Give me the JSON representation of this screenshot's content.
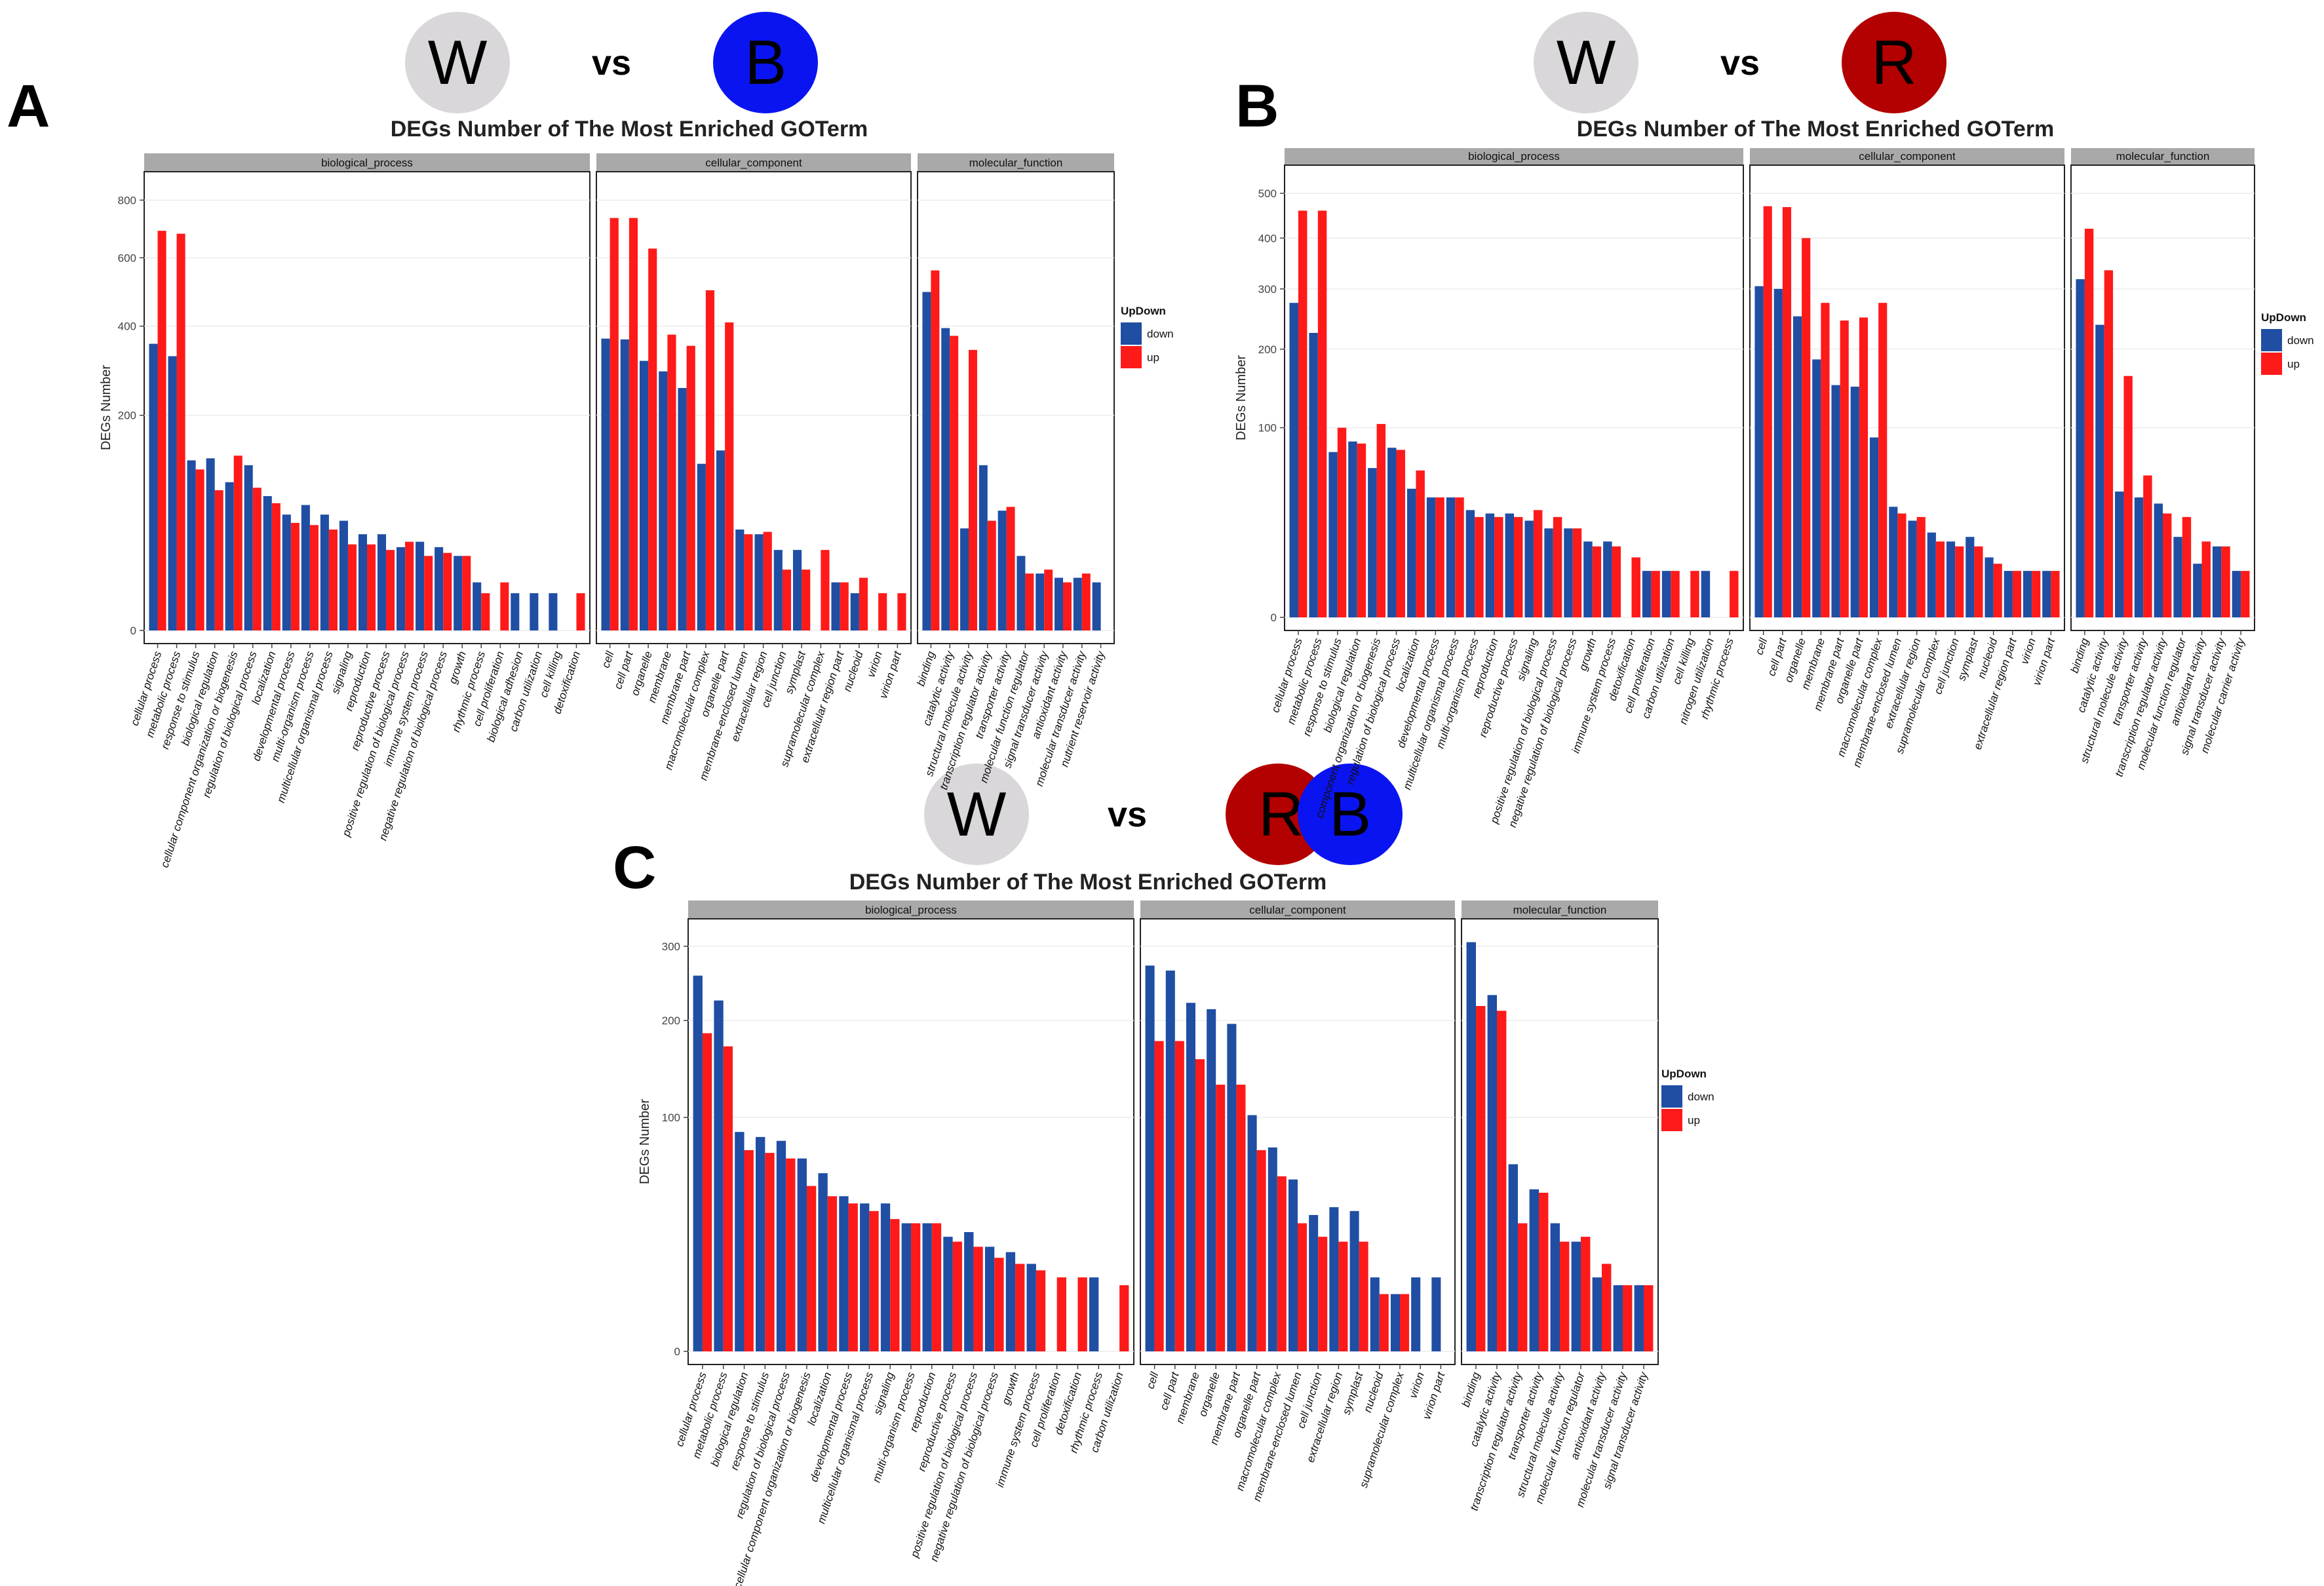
{
  "colors": {
    "down": "#1f4ea3",
    "up": "#ff1a1a",
    "strip": "#a9a9a9",
    "grid": "#ececec",
    "circle_w": "#d9d7d9",
    "circle_b": "#0a14f0",
    "circle_r": "#b30000"
  },
  "panels": [
    {
      "letter": "A",
      "left_label": "W",
      "vs": "vs",
      "right_labels": [
        "B"
      ]
    },
    {
      "letter": "B",
      "left_label": "W",
      "vs": "vs",
      "right_labels": [
        "R"
      ]
    },
    {
      "letter": "C",
      "left_label": "W",
      "vs": "vs",
      "right_labels": [
        "R",
        "B"
      ]
    }
  ],
  "chart_data": [
    {
      "type": "bar",
      "title": "DEGs Number of The Most Enriched GOTerm",
      "ylabel": "DEGs Number",
      "yticks": [
        0,
        200,
        400,
        600,
        800
      ],
      "ymax": 800,
      "legend": {
        "title": "UpDown",
        "entries": [
          "down",
          "up"
        ]
      },
      "facets": [
        {
          "name": "biological_process",
          "categories": [
            "cellular process",
            "metabolic process",
            "response to stimulus",
            "biological regulation",
            "cellular component organization or biogenesis",
            "regulation of biological process",
            "localization",
            "developmental process",
            "multi-organism process",
            "multicellular organismal process",
            "signaling",
            "reproduction",
            "reproductive process",
            "positive regulation of biological process",
            "immune system process",
            "negative regulation of biological process",
            "growth",
            "rhythmic process",
            "cell proliferation",
            "biological adhesion",
            "carbon utilization",
            "cell killing",
            "detoxification"
          ],
          "series": [
            {
              "name": "down",
              "values": [
                355,
                325,
                125,
                128,
                95,
                118,
                78,
                58,
                68,
                58,
                52,
                40,
                40,
                30,
                34,
                30,
                24,
                10,
                0,
                6,
                6,
                6,
                0
              ]
            },
            {
              "name": "up",
              "values": [
                690,
                680,
                112,
                85,
                132,
                88,
                70,
                50,
                48,
                44,
                32,
                32,
                28,
                34,
                24,
                26,
                24,
                6,
                10,
                0,
                0,
                0,
                6
              ]
            }
          ]
        },
        {
          "name": "cellular_component",
          "categories": [
            "cell",
            "cell part",
            "organelle",
            "membrane",
            "membrane part",
            "macromolecular complex",
            "organelle part",
            "membrane-enclosed lumen",
            "extracellular region",
            "cell junction",
            "symplast",
            "supramolecular complex",
            "extracellular region part",
            "nucleoid",
            "virion",
            "virion part"
          ],
          "series": [
            {
              "name": "down",
              "values": [
                368,
                366,
                314,
                290,
                254,
                120,
                140,
                44,
                40,
                28,
                28,
                0,
                10,
                6,
                0,
                0
              ]
            },
            {
              "name": "up",
              "values": [
                735,
                735,
                630,
                378,
                350,
                500,
                410,
                40,
                42,
                16,
                16,
                28,
                10,
                12,
                6,
                6
              ]
            }
          ]
        },
        {
          "name": "molecular_function",
          "categories": [
            "binding",
            "catalytic activity",
            "structural molecule activity",
            "transcription regulator activity",
            "transporter activity",
            "molecular function regulator",
            "signal transducer activity",
            "antioxidant activity",
            "molecular transducer activity",
            "nutrient reservoir activity"
          ],
          "series": [
            {
              "name": "down",
              "values": [
                495,
                395,
                45,
                118,
                62,
                24,
                14,
                12,
                12,
                10
              ]
            },
            {
              "name": "up",
              "values": [
                560,
                375,
                340,
                52,
                66,
                14,
                16,
                10,
                14,
                0
              ]
            }
          ]
        }
      ]
    },
    {
      "type": "bar",
      "title": "DEGs Number of The Most Enriched GOTerm",
      "ylabel": "DEGs Number",
      "yticks": [
        0,
        100,
        200,
        300,
        400,
        500
      ],
      "ymax": 500,
      "legend": {
        "title": "UpDown",
        "entries": [
          "down",
          "up"
        ]
      },
      "facets": [
        {
          "name": "biological_process",
          "categories": [
            "cellular process",
            "metabolic process",
            "response to stimulus",
            "biological regulation",
            "component organization or biogenesis",
            "regulation of biological process",
            "localization",
            "developmental process",
            "multicellular organismal process",
            "multi-organism process",
            "reproduction",
            "reproductive process",
            "signaling",
            "positive regulation of biological process",
            "negative regulation of biological process",
            "growth",
            "immune system process",
            "detoxification",
            "cell proliferation",
            "carbon utilization",
            "cell killing",
            "nitrogen utilization",
            "rhythmic process"
          ],
          "series": [
            {
              "name": "down",
              "values": [
                275,
                225,
                76,
                86,
                62,
                80,
                46,
                40,
                40,
                32,
                30,
                30,
                26,
                22,
                22,
                16,
                16,
                0,
                6,
                6,
                0,
                6,
                0
              ]
            },
            {
              "name": "up",
              "values": [
                460,
                460,
                100,
                84,
                104,
                78,
                60,
                40,
                40,
                28,
                28,
                28,
                32,
                28,
                22,
                14,
                14,
                10,
                6,
                6,
                6,
                0,
                6
              ]
            }
          ]
        },
        {
          "name": "cellular_component",
          "categories": [
            "cell",
            "cell part",
            "organelle",
            "membrane",
            "membrane part",
            "organelle part",
            "macromolecular complex",
            "membrane-enclosed lumen",
            "extracellular region",
            "supramolecular complex",
            "cell junction",
            "symplast",
            "nucleoid",
            "extracellular region part",
            "virion",
            "virion part"
          ],
          "series": [
            {
              "name": "down",
              "values": [
                305,
                300,
                252,
                185,
                150,
                148,
                90,
                34,
                26,
                20,
                16,
                18,
                10,
                6,
                6,
                6
              ]
            },
            {
              "name": "up",
              "values": [
                470,
                468,
                400,
                275,
                245,
                250,
                275,
                30,
                28,
                16,
                14,
                14,
                8,
                6,
                6,
                6
              ]
            }
          ]
        },
        {
          "name": "molecular_function",
          "categories": [
            "binding",
            "catalytic activity",
            "structural molecule activity",
            "transporter activity",
            "transcription regulator activity",
            "molecular function regulator",
            "antioxidant activity",
            "signal transducer activity",
            "molecular carrier activity"
          ],
          "series": [
            {
              "name": "down",
              "values": [
                318,
                238,
                44,
                40,
                36,
                18,
                8,
                14,
                6
              ]
            },
            {
              "name": "up",
              "values": [
                420,
                335,
                162,
                56,
                30,
                28,
                16,
                14,
                6
              ]
            }
          ]
        }
      ]
    },
    {
      "type": "bar",
      "title": "DEGs Number of The Most Enriched GOTerm",
      "ylabel": "DEGs Number",
      "yticks": [
        0,
        100,
        200,
        300
      ],
      "ymax": 300,
      "legend": {
        "title": "UpDown",
        "entries": [
          "down",
          "up"
        ]
      },
      "facets": [
        {
          "name": "biological_process",
          "categories": [
            "cellular process",
            "metabolic process",
            "biological regulation",
            "response to stimulus",
            "regulation of biological process",
            "cellular component organization or biogenesis",
            "localization",
            "developmental process",
            "multicellular organismal process",
            "signaling",
            "multi-organism process",
            "reproduction",
            "reproductive process",
            "positive regulation of biological process",
            "negative regulation of biological process",
            "growth",
            "immune system process",
            "cell proliferation",
            "detoxification",
            "rhythmic process",
            "carbon utilization"
          ],
          "series": [
            {
              "name": "down",
              "values": [
                258,
                225,
                88,
                84,
                81,
                68,
                58,
                44,
                40,
                40,
                30,
                30,
                24,
                26,
                20,
                18,
                14,
                0,
                0,
                10,
                0
              ]
            },
            {
              "name": "up",
              "values": [
                185,
                170,
                74,
                72,
                68,
                50,
                44,
                40,
                36,
                32,
                30,
                30,
                22,
                20,
                16,
                14,
                12,
                10,
                10,
                0,
                8
              ]
            }
          ]
        },
        {
          "name": "cellular_component",
          "categories": [
            "cell",
            "cell part",
            "membrane",
            "organelle",
            "membrane part",
            "organelle part",
            "macromolecular complex",
            "membrane-enclosed lumen",
            "cell junction",
            "extracellular region",
            "symplast",
            "nucleoid",
            "supramolecular complex",
            "virion",
            "virion part"
          ],
          "series": [
            {
              "name": "down",
              "values": [
                272,
                265,
                222,
                214,
                196,
                102,
                76,
                54,
                34,
                38,
                36,
                10,
                6,
                10,
                10
              ]
            },
            {
              "name": "up",
              "values": [
                176,
                176,
                156,
                130,
                130,
                74,
                56,
                30,
                24,
                22,
                22,
                6,
                6,
                0,
                0
              ]
            }
          ]
        },
        {
          "name": "molecular_function",
          "categories": [
            "binding",
            "catalytic activity",
            "transcription regulator activity",
            "transporter activity",
            "structural molecule activity",
            "molecular function regulator",
            "antioxidant activity",
            "molecular transducer activity",
            "signal transducer activity"
          ],
          "series": [
            {
              "name": "down",
              "values": [
                306,
                232,
                64,
                48,
                30,
                22,
                10,
                8,
                8
              ]
            },
            {
              "name": "up",
              "values": [
                218,
                212,
                30,
                46,
                22,
                24,
                14,
                8,
                8
              ]
            }
          ]
        }
      ]
    }
  ]
}
